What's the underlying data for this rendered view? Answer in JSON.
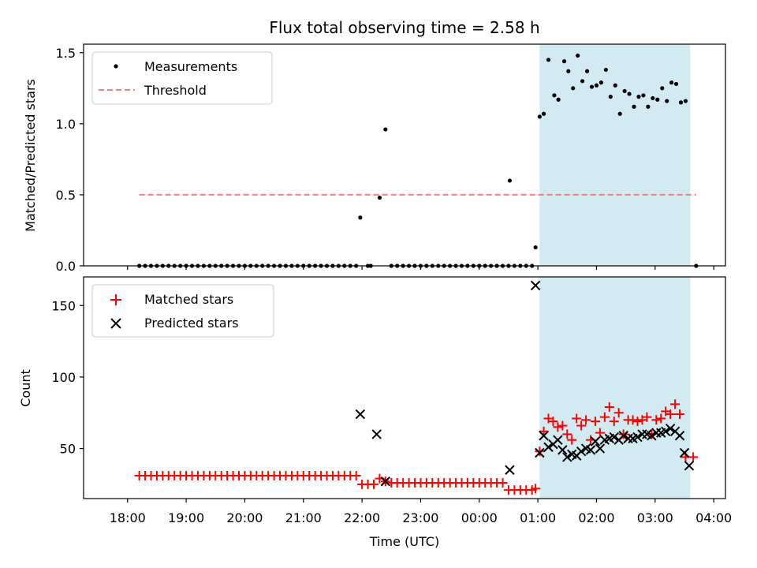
{
  "chart_data": [
    {
      "type": "scatter",
      "title": "Flux total observing time = 2.58 h",
      "xlabel": "",
      "ylabel": "Matched/Predicted stars",
      "ylim": [
        0.0,
        1.56
      ],
      "yticks": [
        0.0,
        0.5,
        1.0,
        1.5
      ],
      "ytick_labels": [
        "0.0",
        "0.5",
        "1.0",
        "1.5"
      ],
      "x_unit": "hours from 00:00 UTC (negative = previous day)",
      "xlim": [
        -6.75,
        4.2
      ],
      "legend_position": "top-left",
      "shaded_interval": [
        1.03,
        3.6
      ],
      "threshold": {
        "label": "Threshold",
        "value": 0.5,
        "x_range": [
          -5.8,
          3.7
        ],
        "color": "#f08080"
      },
      "series": [
        {
          "name": "Measurements",
          "color": "#000000",
          "points": [
            [
              -5.8,
              0
            ],
            [
              -5.7,
              0
            ],
            [
              -5.6,
              0
            ],
            [
              -5.5,
              0
            ],
            [
              -5.4,
              0
            ],
            [
              -5.3,
              0
            ],
            [
              -5.2,
              0
            ],
            [
              -5.1,
              0
            ],
            [
              -5.0,
              0
            ],
            [
              -4.9,
              0
            ],
            [
              -4.8,
              0
            ],
            [
              -4.7,
              0
            ],
            [
              -4.6,
              0
            ],
            [
              -4.5,
              0
            ],
            [
              -4.4,
              0
            ],
            [
              -4.3,
              0
            ],
            [
              -4.2,
              0
            ],
            [
              -4.1,
              0
            ],
            [
              -4.0,
              0
            ],
            [
              -3.9,
              0
            ],
            [
              -3.8,
              0
            ],
            [
              -3.7,
              0
            ],
            [
              -3.6,
              0
            ],
            [
              -3.5,
              0
            ],
            [
              -3.4,
              0
            ],
            [
              -3.3,
              0
            ],
            [
              -3.2,
              0
            ],
            [
              -3.1,
              0
            ],
            [
              -3.0,
              0
            ],
            [
              -2.9,
              0
            ],
            [
              -2.8,
              0
            ],
            [
              -2.7,
              0
            ],
            [
              -2.6,
              0
            ],
            [
              -2.5,
              0
            ],
            [
              -2.4,
              0
            ],
            [
              -2.3,
              0
            ],
            [
              -2.2,
              0
            ],
            [
              -2.1,
              0
            ],
            [
              -2.03,
              0.34
            ],
            [
              -1.9,
              0
            ],
            [
              -1.85,
              0
            ],
            [
              -1.7,
              0.48
            ],
            [
              -1.6,
              0.96
            ],
            [
              -1.5,
              0
            ],
            [
              -1.4,
              0
            ],
            [
              -1.3,
              0
            ],
            [
              -1.2,
              0
            ],
            [
              -1.1,
              0
            ],
            [
              -1.0,
              0
            ],
            [
              -0.9,
              0
            ],
            [
              -0.8,
              0
            ],
            [
              -0.7,
              0
            ],
            [
              -0.6,
              0
            ],
            [
              -0.5,
              0
            ],
            [
              -0.4,
              0
            ],
            [
              -0.3,
              0
            ],
            [
              -0.2,
              0
            ],
            [
              -0.1,
              0
            ],
            [
              0.0,
              0
            ],
            [
              0.1,
              0
            ],
            [
              0.2,
              0
            ],
            [
              0.3,
              0
            ],
            [
              0.4,
              0
            ],
            [
              0.5,
              0
            ],
            [
              0.52,
              0.6
            ],
            [
              0.6,
              0
            ],
            [
              0.7,
              0
            ],
            [
              0.8,
              0
            ],
            [
              0.9,
              0
            ],
            [
              0.96,
              0.13
            ],
            [
              1.03,
              1.05
            ],
            [
              1.1,
              1.07
            ],
            [
              1.18,
              1.45
            ],
            [
              1.28,
              1.2
            ],
            [
              1.35,
              1.17
            ],
            [
              1.45,
              1.44
            ],
            [
              1.52,
              1.37
            ],
            [
              1.6,
              1.25
            ],
            [
              1.68,
              1.48
            ],
            [
              1.76,
              1.3
            ],
            [
              1.84,
              1.37
            ],
            [
              1.92,
              1.26
            ],
            [
              2.0,
              1.27
            ],
            [
              2.08,
              1.29
            ],
            [
              2.16,
              1.38
            ],
            [
              2.24,
              1.19
            ],
            [
              2.32,
              1.27
            ],
            [
              2.4,
              1.07
            ],
            [
              2.48,
              1.23
            ],
            [
              2.56,
              1.21
            ],
            [
              2.64,
              1.12
            ],
            [
              2.72,
              1.19
            ],
            [
              2.8,
              1.2
            ],
            [
              2.88,
              1.12
            ],
            [
              2.96,
              1.18
            ],
            [
              3.04,
              1.17
            ],
            [
              3.12,
              1.25
            ],
            [
              3.2,
              1.16
            ],
            [
              3.28,
              1.29
            ],
            [
              3.36,
              1.28
            ],
            [
              3.44,
              1.15
            ],
            [
              3.52,
              1.16
            ],
            [
              3.7,
              0
            ]
          ]
        }
      ]
    },
    {
      "type": "scatter",
      "title": "",
      "xlabel": "Time (UTC)",
      "ylabel": "Count",
      "ylim": [
        15,
        170
      ],
      "yticks": [
        50,
        100,
        150
      ],
      "ytick_labels": [
        "50",
        "100",
        "150"
      ],
      "x_unit": "hours from 00:00 UTC (negative = previous day)",
      "xlim": [
        -6.75,
        4.2
      ],
      "xticks": [
        -6,
        -5,
        -4,
        -3,
        -2,
        -1,
        0,
        1,
        2,
        3,
        4
      ],
      "xtick_labels": [
        "18:00",
        "19:00",
        "20:00",
        "21:00",
        "22:00",
        "23:00",
        "00:00",
        "01:00",
        "02:00",
        "03:00",
        "04:00"
      ],
      "legend_position": "top-left",
      "shaded_interval": [
        1.03,
        3.6
      ],
      "series": [
        {
          "name": "Matched stars",
          "marker": "plus",
          "color": "#ff0000",
          "points": [
            [
              -5.8,
              31
            ],
            [
              -5.7,
              31
            ],
            [
              -5.6,
              31
            ],
            [
              -5.5,
              31
            ],
            [
              -5.4,
              31
            ],
            [
              -5.3,
              31
            ],
            [
              -5.2,
              31
            ],
            [
              -5.1,
              31
            ],
            [
              -5.0,
              31
            ],
            [
              -4.9,
              31
            ],
            [
              -4.8,
              31
            ],
            [
              -4.7,
              31
            ],
            [
              -4.6,
              31
            ],
            [
              -4.5,
              31
            ],
            [
              -4.4,
              31
            ],
            [
              -4.3,
              31
            ],
            [
              -4.2,
              31
            ],
            [
              -4.1,
              31
            ],
            [
              -4.0,
              31
            ],
            [
              -3.9,
              31
            ],
            [
              -3.8,
              31
            ],
            [
              -3.7,
              31
            ],
            [
              -3.6,
              31
            ],
            [
              -3.5,
              31
            ],
            [
              -3.4,
              31
            ],
            [
              -3.3,
              31
            ],
            [
              -3.2,
              31
            ],
            [
              -3.1,
              31
            ],
            [
              -3.0,
              31
            ],
            [
              -2.9,
              31
            ],
            [
              -2.8,
              31
            ],
            [
              -2.7,
              31
            ],
            [
              -2.6,
              31
            ],
            [
              -2.5,
              31
            ],
            [
              -2.4,
              31
            ],
            [
              -2.3,
              31
            ],
            [
              -2.2,
              31
            ],
            [
              -2.1,
              31
            ],
            [
              -2.0,
              25
            ],
            [
              -1.9,
              25
            ],
            [
              -1.8,
              25
            ],
            [
              -1.7,
              29
            ],
            [
              -1.6,
              27
            ],
            [
              -1.5,
              26
            ],
            [
              -1.4,
              26
            ],
            [
              -1.3,
              26
            ],
            [
              -1.2,
              26
            ],
            [
              -1.1,
              26
            ],
            [
              -1.0,
              26
            ],
            [
              -0.9,
              26
            ],
            [
              -0.8,
              26
            ],
            [
              -0.7,
              26
            ],
            [
              -0.6,
              26
            ],
            [
              -0.5,
              26
            ],
            [
              -0.4,
              26
            ],
            [
              -0.3,
              26
            ],
            [
              -0.2,
              26
            ],
            [
              -0.1,
              26
            ],
            [
              0.0,
              26
            ],
            [
              0.1,
              26
            ],
            [
              0.2,
              26
            ],
            [
              0.3,
              26
            ],
            [
              0.4,
              26
            ],
            [
              0.5,
              21
            ],
            [
              0.6,
              21
            ],
            [
              0.7,
              21
            ],
            [
              0.8,
              21
            ],
            [
              0.9,
              21
            ],
            [
              0.96,
              22
            ],
            [
              1.03,
              48
            ],
            [
              1.1,
              62
            ],
            [
              1.18,
              71
            ],
            [
              1.26,
              69
            ],
            [
              1.34,
              65
            ],
            [
              1.42,
              66
            ],
            [
              1.5,
              60
            ],
            [
              1.58,
              56
            ],
            [
              1.66,
              71
            ],
            [
              1.74,
              66
            ],
            [
              1.82,
              70
            ],
            [
              1.9,
              56
            ],
            [
              1.98,
              69
            ],
            [
              2.06,
              61
            ],
            [
              2.14,
              72
            ],
            [
              2.22,
              79
            ],
            [
              2.3,
              69
            ],
            [
              2.38,
              75
            ],
            [
              2.46,
              60
            ],
            [
              2.54,
              70
            ],
            [
              2.62,
              70
            ],
            [
              2.7,
              69
            ],
            [
              2.78,
              70
            ],
            [
              2.86,
              72
            ],
            [
              2.94,
              60
            ],
            [
              3.02,
              70
            ],
            [
              3.1,
              71
            ],
            [
              3.18,
              76
            ],
            [
              3.26,
              74
            ],
            [
              3.34,
              81
            ],
            [
              3.42,
              74
            ],
            [
              3.52,
              44
            ],
            [
              3.65,
              44
            ]
          ]
        },
        {
          "name": "Predicted stars",
          "marker": "x",
          "color": "#000000",
          "points": [
            [
              -2.03,
              74
            ],
            [
              -1.75,
              60
            ],
            [
              -1.6,
              27
            ],
            [
              0.52,
              35
            ],
            [
              0.96,
              164
            ],
            [
              1.03,
              47
            ],
            [
              1.1,
              59
            ],
            [
              1.18,
              51
            ],
            [
              1.26,
              53
            ],
            [
              1.34,
              56
            ],
            [
              1.42,
              49
            ],
            [
              1.5,
              44
            ],
            [
              1.58,
              46
            ],
            [
              1.66,
              45
            ],
            [
              1.74,
              48
            ],
            [
              1.82,
              50
            ],
            [
              1.9,
              49
            ],
            [
              1.98,
              55
            ],
            [
              2.06,
              50
            ],
            [
              2.14,
              56
            ],
            [
              2.22,
              57
            ],
            [
              2.3,
              58
            ],
            [
              2.38,
              56
            ],
            [
              2.46,
              59
            ],
            [
              2.54,
              57
            ],
            [
              2.62,
              57
            ],
            [
              2.7,
              58
            ],
            [
              2.78,
              60
            ],
            [
              2.86,
              60
            ],
            [
              2.94,
              59
            ],
            [
              3.02,
              61
            ],
            [
              3.1,
              61
            ],
            [
              3.18,
              62
            ],
            [
              3.26,
              64
            ],
            [
              3.34,
              62
            ],
            [
              3.42,
              59
            ],
            [
              3.5,
              47
            ],
            [
              3.58,
              38
            ]
          ]
        }
      ]
    }
  ]
}
